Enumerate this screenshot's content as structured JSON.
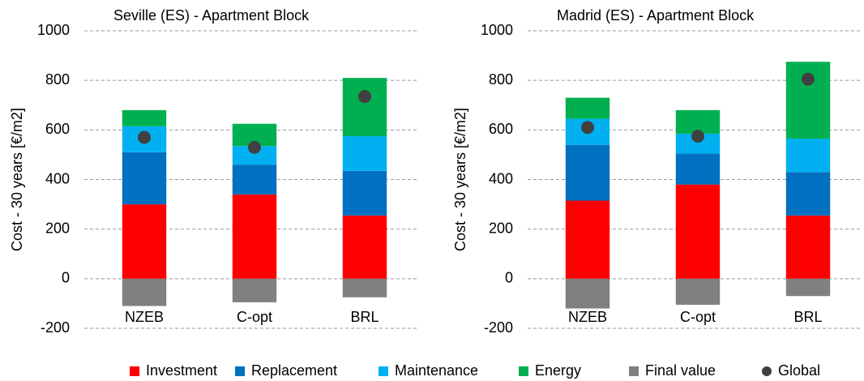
{
  "chart_data": [
    {
      "type": "bar",
      "stacked": true,
      "title": "Seville (ES) - Apartment Block",
      "y_label": "Cost - 30 years [€/m2]",
      "categories": [
        "NZEB",
        "C-opt",
        "BRL"
      ],
      "series": [
        {
          "name": "Investment",
          "color": "#ff0000",
          "values": [
            300,
            340,
            255
          ]
        },
        {
          "name": "Replacement",
          "color": "#0070c0",
          "values": [
            210,
            120,
            180
          ]
        },
        {
          "name": "Maintenance",
          "color": "#00b0f0",
          "values": [
            105,
            75,
            140
          ]
        },
        {
          "name": "Energy",
          "color": "#00b050",
          "values": [
            65,
            90,
            235
          ]
        },
        {
          "name": "Final value",
          "color": "#808080",
          "values": [
            -110,
            -95,
            -75
          ]
        },
        {
          "name": "Global",
          "color": "#404040",
          "type": "scatter",
          "values": [
            570,
            530,
            735
          ]
        }
      ],
      "ylim": [
        -200,
        1000
      ],
      "yticks": [
        -200,
        0,
        200,
        400,
        600,
        800,
        1000
      ],
      "grid": true
    },
    {
      "type": "bar",
      "stacked": true,
      "title": "Madrid (ES) - Apartment Block",
      "y_label": "Cost - 30 years [€/m2]",
      "categories": [
        "NZEB",
        "C-opt",
        "BRL"
      ],
      "series": [
        {
          "name": "Investment",
          "color": "#ff0000",
          "values": [
            315,
            380,
            255
          ]
        },
        {
          "name": "Replacement",
          "color": "#0070c0",
          "values": [
            225,
            125,
            175
          ]
        },
        {
          "name": "Maintenance",
          "color": "#00b0f0",
          "values": [
            105,
            80,
            135
          ]
        },
        {
          "name": "Energy",
          "color": "#00b050",
          "values": [
            85,
            95,
            310
          ]
        },
        {
          "name": "Final value",
          "color": "#808080",
          "values": [
            -120,
            -105,
            -70
          ]
        },
        {
          "name": "Global",
          "color": "#404040",
          "type": "scatter",
          "values": [
            610,
            575,
            805
          ]
        }
      ],
      "ylim": [
        -200,
        1000
      ],
      "yticks": [
        -200,
        0,
        200,
        400,
        600,
        800,
        1000
      ],
      "grid": true
    }
  ]
}
